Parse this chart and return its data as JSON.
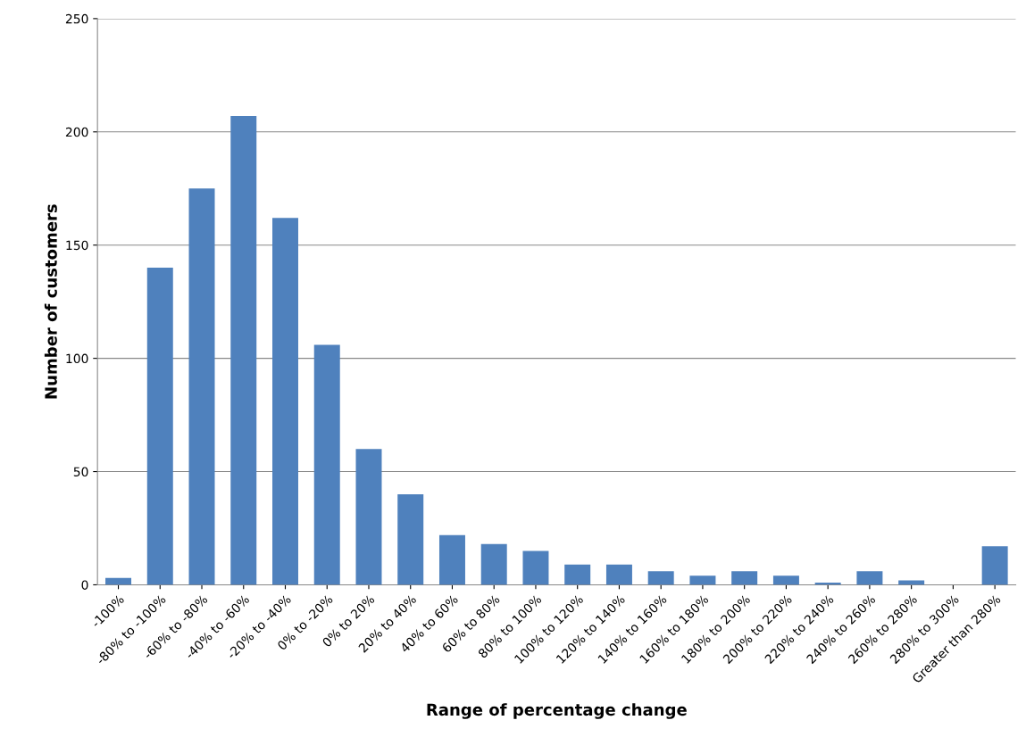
{
  "chart_data": {
    "type": "bar",
    "xlabel": "Range of percentage change",
    "ylabel": "Number of customers",
    "categories": [
      "-100%",
      "-80% to -100%",
      "-60% to -80%",
      "-40% to -60%",
      "-20% to -40%",
      "0% to -20%",
      "0% to 20%",
      "20% to 40%",
      "40% to 60%",
      "60% to 80%",
      "80% to 100%",
      "100% to 120%",
      "120% to 140%",
      "140% to 160%",
      "160% to 180%",
      "180% to 200%",
      "200% to 220%",
      "220% to 240%",
      "240% to 260%",
      "260% to 280%",
      "280% to 300%",
      "Greater than 280%"
    ],
    "values": [
      3,
      140,
      175,
      207,
      162,
      106,
      60,
      40,
      22,
      18,
      15,
      9,
      9,
      6,
      4,
      6,
      4,
      1,
      6,
      2,
      0,
      17
    ],
    "color": "#4f81bd",
    "ylim": [
      0,
      250
    ],
    "yticks": [
      0,
      50,
      100,
      150,
      200,
      250
    ],
    "grid": "y"
  }
}
